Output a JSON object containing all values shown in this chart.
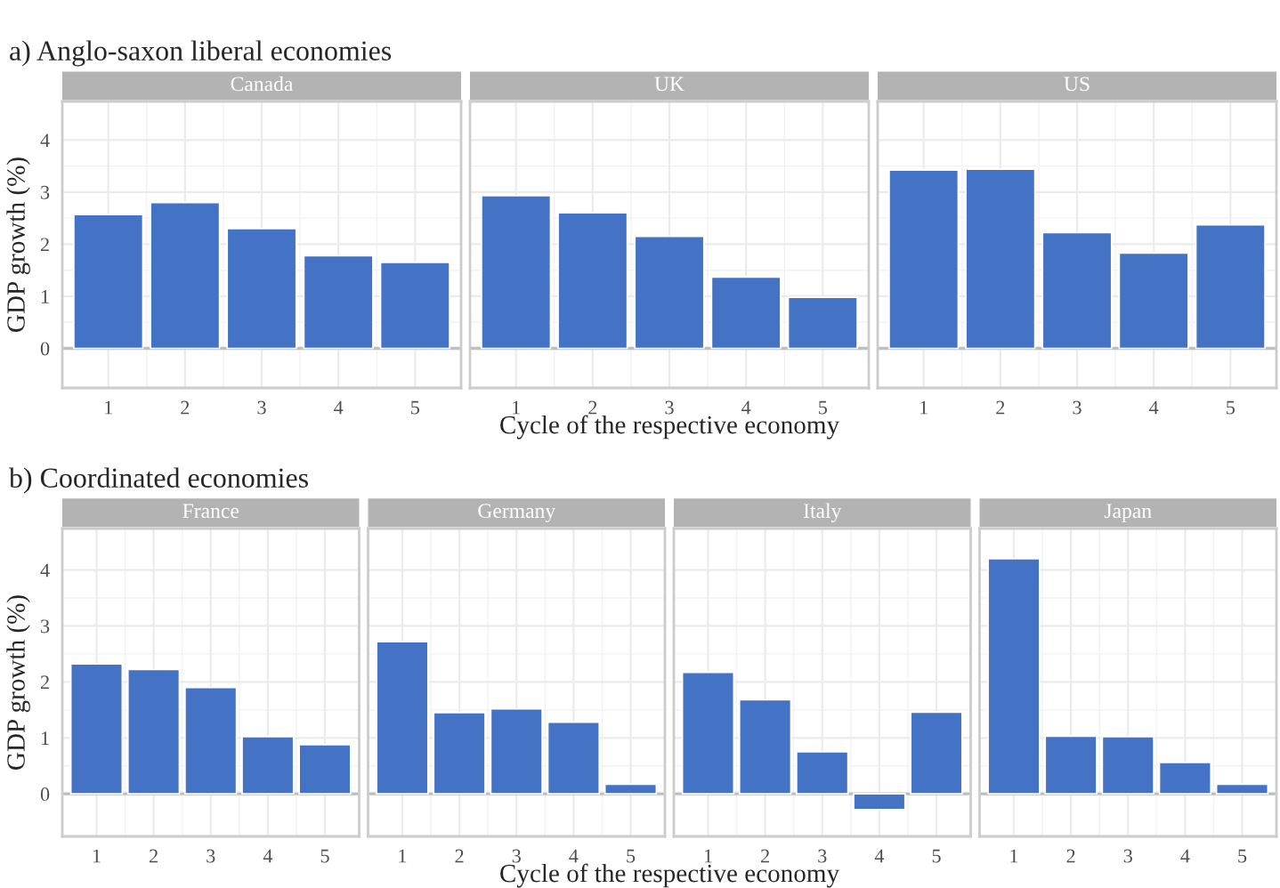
{
  "chart_data": [
    {
      "type": "bar",
      "title": "Canada",
      "annotations": [
        "a) Anglo-saxon liberal economies"
      ],
      "xlabel": "Cycle of the respective economy",
      "ylabel": "GDP growth (%)",
      "x": [
        1,
        2,
        3,
        4,
        5
      ],
      "values": [
        2.57,
        2.8,
        2.3,
        1.78,
        1.65
      ],
      "color": "#4472c4",
      "xlim": [
        0.4,
        5.6
      ],
      "xticks": [
        1,
        2,
        3,
        4,
        5
      ],
      "ylim": [
        -0.76,
        4.74
      ],
      "yticks": [
        0,
        1,
        2,
        3,
        4
      ],
      "grid": true,
      "ref_lines": [
        {
          "axis": "y",
          "value": 0,
          "color": "#bfbfbf"
        }
      ]
    },
    {
      "type": "bar",
      "title": "UK",
      "x": [
        1,
        2,
        3,
        4,
        5
      ],
      "values": [
        2.93,
        2.6,
        2.15,
        1.37,
        0.98
      ],
      "color": "#4472c4",
      "xlim": [
        0.4,
        5.6
      ],
      "xticks": [
        1,
        2,
        3,
        4,
        5
      ],
      "ylim": [
        -0.76,
        4.74
      ],
      "yticks": [
        0,
        1,
        2,
        3,
        4
      ],
      "grid": true,
      "tick_labels": "x",
      "ref_lines": [
        {
          "axis": "y",
          "value": 0,
          "color": "#bfbfbf"
        }
      ]
    },
    {
      "type": "bar",
      "title": "US",
      "x": [
        1,
        2,
        3,
        4,
        5
      ],
      "values": [
        3.42,
        3.44,
        2.22,
        1.83,
        2.37
      ],
      "color": "#4472c4",
      "xlim": [
        0.4,
        5.6
      ],
      "xticks": [
        1,
        2,
        3,
        4,
        5
      ],
      "ylim": [
        -0.76,
        4.74
      ],
      "yticks": [
        0,
        1,
        2,
        3,
        4
      ],
      "grid": true,
      "tick_labels": "x",
      "ref_lines": [
        {
          "axis": "y",
          "value": 0,
          "color": "#bfbfbf"
        }
      ]
    },
    {
      "type": "bar",
      "title": "France",
      "annotations": [
        "b) Coordinated economies"
      ],
      "xlabel": "Cycle of the respective economy",
      "ylabel": "GDP growth (%)",
      "x": [
        1,
        2,
        3,
        4,
        5
      ],
      "values": [
        2.32,
        2.22,
        1.9,
        1.02,
        0.88
      ],
      "color": "#4472c4",
      "xlim": [
        0.4,
        5.6
      ],
      "xticks": [
        1,
        2,
        3,
        4,
        5
      ],
      "ylim": [
        -0.76,
        4.74
      ],
      "yticks": [
        0,
        1,
        2,
        3,
        4
      ],
      "grid": true,
      "ref_lines": [
        {
          "axis": "y",
          "value": 0,
          "color": "#bfbfbf"
        }
      ]
    },
    {
      "type": "bar",
      "title": "Germany",
      "x": [
        1,
        2,
        3,
        4,
        5
      ],
      "values": [
        2.72,
        1.45,
        1.52,
        1.28,
        0.17
      ],
      "color": "#4472c4",
      "xlim": [
        0.4,
        5.6
      ],
      "xticks": [
        1,
        2,
        3,
        4,
        5
      ],
      "ylim": [
        -0.76,
        4.74
      ],
      "yticks": [
        0,
        1,
        2,
        3,
        4
      ],
      "grid": true,
      "tick_labels": "x",
      "ref_lines": [
        {
          "axis": "y",
          "value": 0,
          "color": "#bfbfbf"
        }
      ]
    },
    {
      "type": "bar",
      "title": "Italy",
      "x": [
        1,
        2,
        3,
        4,
        5
      ],
      "values": [
        2.17,
        1.68,
        0.75,
        -0.28,
        1.46
      ],
      "color": "#4472c4",
      "xlim": [
        0.4,
        5.6
      ],
      "xticks": [
        1,
        2,
        3,
        4,
        5
      ],
      "ylim": [
        -0.76,
        4.74
      ],
      "yticks": [
        0,
        1,
        2,
        3,
        4
      ],
      "grid": true,
      "tick_labels": "x",
      "ref_lines": [
        {
          "axis": "y",
          "value": 0,
          "color": "#bfbfbf"
        }
      ]
    },
    {
      "type": "bar",
      "title": "Japan",
      "x": [
        1,
        2,
        3,
        4,
        5
      ],
      "values": [
        4.2,
        1.03,
        1.02,
        0.56,
        0.17
      ],
      "color": "#4472c4",
      "xlim": [
        0.4,
        5.6
      ],
      "xticks": [
        1,
        2,
        3,
        4,
        5
      ],
      "ylim": [
        -0.76,
        4.74
      ],
      "yticks": [
        0,
        1,
        2,
        3,
        4
      ],
      "grid": true,
      "tick_labels": "x",
      "ref_lines": [
        {
          "axis": "y",
          "value": 0,
          "color": "#bfbfbf"
        }
      ]
    }
  ]
}
